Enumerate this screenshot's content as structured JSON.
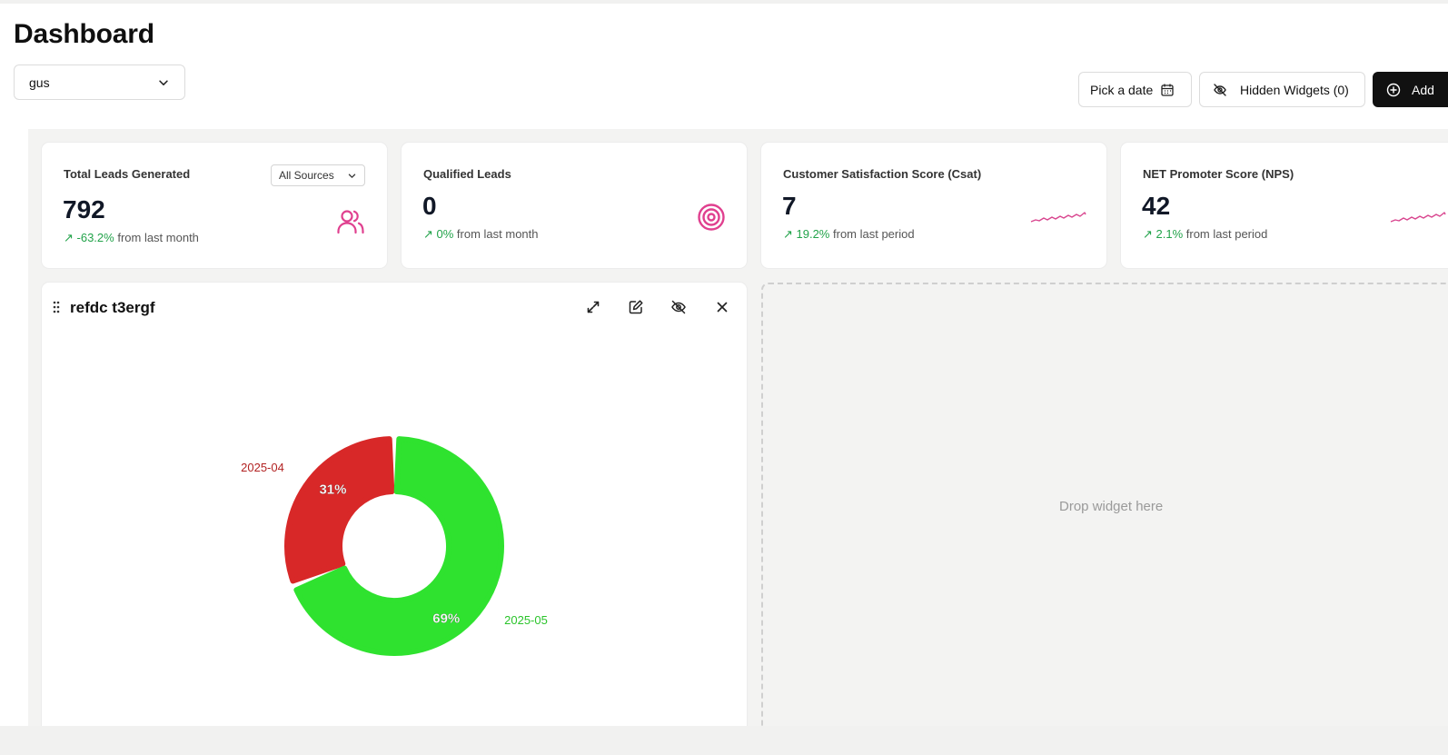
{
  "page": {
    "title": "Dashboard",
    "dashboard_select": "gus"
  },
  "toolbar": {
    "date_label": "Pick a date",
    "hidden_widgets_label": "Hidden Widgets (0)",
    "add_label": "Add"
  },
  "metrics": [
    {
      "title": "Total Leads Generated",
      "value": "792",
      "change": "↗ -63.2%",
      "suffix": "from last month",
      "filter": "All Sources",
      "icon": "users-icon"
    },
    {
      "title": "Qualified Leads",
      "value": "0",
      "change": "↗ 0%",
      "suffix": "from last month",
      "icon": "target-icon"
    },
    {
      "title": "Customer Satisfaction Score (Csat)",
      "value": "7",
      "change": "↗ 19.2%",
      "suffix": "from last period",
      "icon": "sparkline-icon"
    },
    {
      "title": "NET Promoter Score (NPS)",
      "value": "42",
      "change": "↗ 2.1%",
      "suffix": "from last period",
      "icon": "sparkline-icon"
    }
  ],
  "widget": {
    "title": "refdc t3ergf",
    "actions": [
      "expand-icon",
      "edit-icon",
      "hide-icon",
      "close-icon"
    ]
  },
  "chart_data": {
    "type": "pie",
    "donut": true,
    "categories": [
      "2025-04",
      "2025-05"
    ],
    "values": [
      31,
      69
    ],
    "labels": [
      "31%",
      "69%"
    ],
    "colors": [
      "#d82828",
      "#2fe22f"
    ]
  },
  "dropzone": {
    "label": "Drop widget here"
  }
}
